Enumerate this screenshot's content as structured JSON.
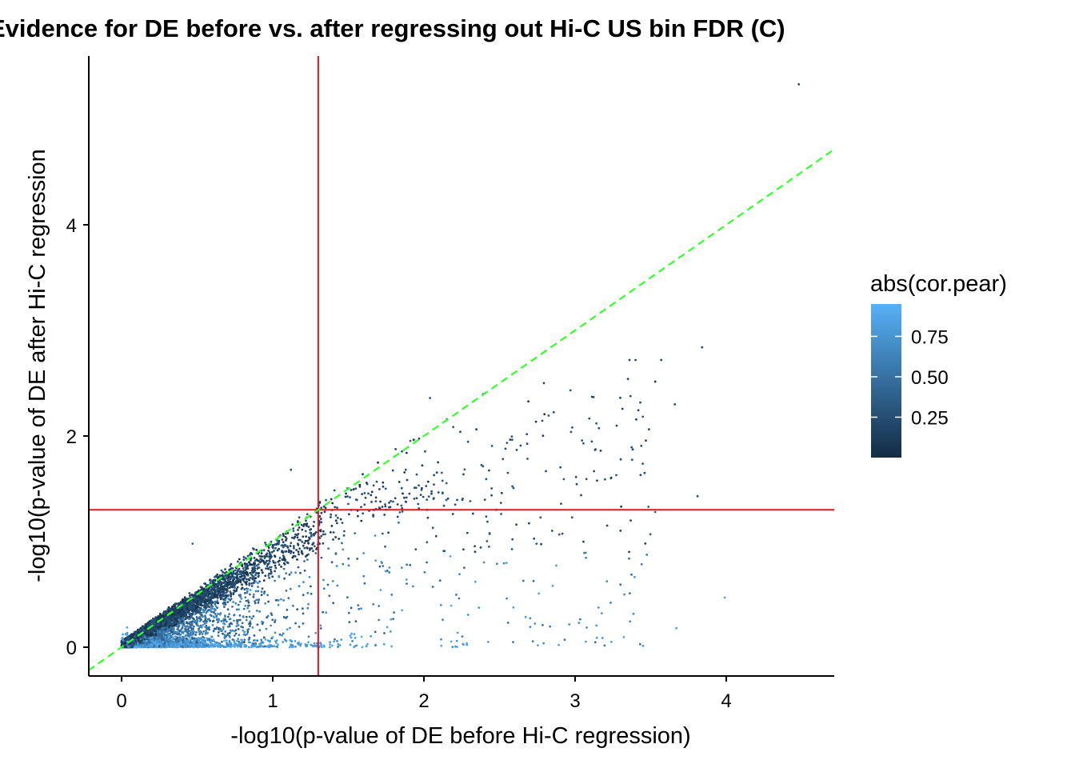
{
  "chart_data": {
    "type": "scatter",
    "title": "Evidence for DE before vs. after regressing out Hi-C US bin FDR (C)",
    "xlabel": "-log10(p-value of DE before Hi-C regression)",
    "ylabel": "-log10(p-value of DE after Hi-C regression",
    "xlim": [
      -0.22,
      4.7
    ],
    "ylim": [
      -0.27,
      5.6
    ],
    "x_ticks": [
      0,
      1,
      2,
      3,
      4
    ],
    "x_tick_labels": [
      "0",
      "1",
      "2",
      "3",
      "4"
    ],
    "y_ticks": [
      0,
      2,
      4
    ],
    "y_tick_labels": [
      "0",
      "2",
      "4"
    ],
    "grid": false,
    "reference_lines": {
      "vertical_x": 1.301,
      "horizontal_y": 1.301,
      "vertical_color": "#e8141c",
      "horizontal_color": "#e8141c",
      "identity_line_color": "#33ff2c",
      "identity_line_style": "dashed"
    },
    "color_scale": {
      "title": "abs(cor.pear)",
      "ticks": [
        0.25,
        0.5,
        0.75
      ],
      "tick_labels": [
        "0.25",
        "0.50",
        "0.75"
      ],
      "range": [
        0.0,
        0.95
      ],
      "low_color": "#132b43",
      "high_color": "#56b1f7",
      "legend_position": "right"
    },
    "highlighted_points": [
      {
        "x": 4.48,
        "y": 5.33,
        "c": 0.2
      },
      {
        "x": 3.84,
        "y": 2.84,
        "c": 0.2
      },
      {
        "x": 3.57,
        "y": 2.72,
        "c": 0.2
      },
      {
        "x": 3.36,
        "y": 2.72,
        "c": 0.2
      },
      {
        "x": 3.4,
        "y": 2.72,
        "c": 0.2
      },
      {
        "x": 3.35,
        "y": 2.54,
        "c": 0.25
      },
      {
        "x": 3.66,
        "y": 2.3,
        "c": 0.2
      },
      {
        "x": 3.46,
        "y": 1.65,
        "c": 0.25
      },
      {
        "x": 3.81,
        "y": 1.43,
        "c": 0.3
      },
      {
        "x": 3.53,
        "y": 1.28,
        "c": 0.4
      },
      {
        "x": 3.99,
        "y": 0.47,
        "c": 0.85
      },
      {
        "x": 3.67,
        "y": 0.18,
        "c": 0.85
      },
      {
        "x": 3.24,
        "y": 0.05,
        "c": 0.85
      },
      {
        "x": 2.04,
        "y": 2.36,
        "c": 0.3
      },
      {
        "x": 1.12,
        "y": 1.68,
        "c": 0.3
      },
      {
        "x": 0.47,
        "y": 0.98,
        "c": 0.4
      }
    ],
    "bulk_description_points": "approximately 7000 gene-level points; dense diagonal band (y≈0.85x, low |r|) plus spread below diagonal towards y≈0 (high |r|)"
  }
}
